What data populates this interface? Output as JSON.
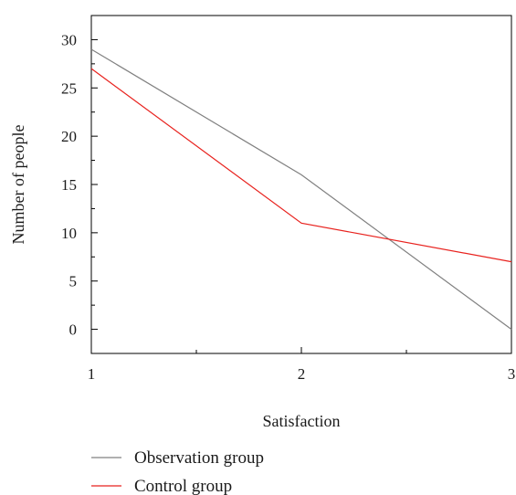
{
  "chart_data": {
    "type": "line",
    "xlabel": "Satisfaction",
    "ylabel": "Number of people",
    "x": [
      1,
      2,
      3
    ],
    "xlim": [
      1,
      3
    ],
    "ylim": [
      -2.5,
      32.5
    ],
    "xticks": [
      1,
      2,
      3
    ],
    "yticks": [
      0,
      5,
      10,
      15,
      20,
      25,
      30
    ],
    "grid": false,
    "legend_position": "bottom",
    "series": [
      {
        "name": "Observation group",
        "color": "#808080",
        "values": [
          29,
          16,
          0
        ]
      },
      {
        "name": "Control group",
        "color": "#e8221e",
        "values": [
          27,
          11,
          7
        ]
      }
    ]
  }
}
